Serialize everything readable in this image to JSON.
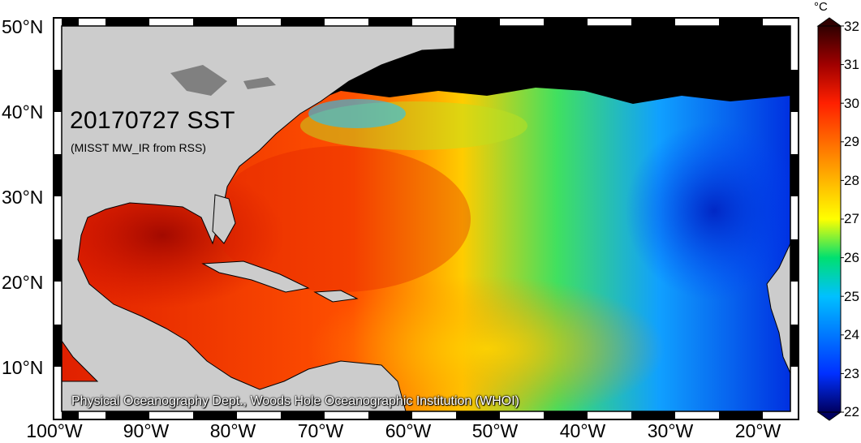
{
  "map": {
    "title": "20170727 SST",
    "subtitle": "(MISST MW_IR from RSS)",
    "credit": "Physical Oceanography Dept., Woods Hole Oceanographic Institution (WHOI)",
    "lat_ticks": [
      "50°N",
      "40°N",
      "30°N",
      "20°N",
      "10°N"
    ],
    "lon_ticks": [
      "100°W",
      "90°W",
      "80°W",
      "70°W",
      "60°W",
      "50°W",
      "40°W",
      "30°W",
      "20°W"
    ],
    "land_color": "#cccccc",
    "nodata_color": "#000000"
  },
  "colorbar": {
    "unit": "°C",
    "ticks": [
      "32",
      "31",
      "30",
      "29",
      "28",
      "27",
      "26",
      "25",
      "24",
      "23",
      "22"
    ],
    "min": 22,
    "max": 32,
    "colors": [
      "#000060",
      "#0030ff",
      "#00c0ff",
      "#00e070",
      "#ffff00",
      "#ff9000",
      "#ff2000",
      "#a00000",
      "#300000"
    ]
  }
}
